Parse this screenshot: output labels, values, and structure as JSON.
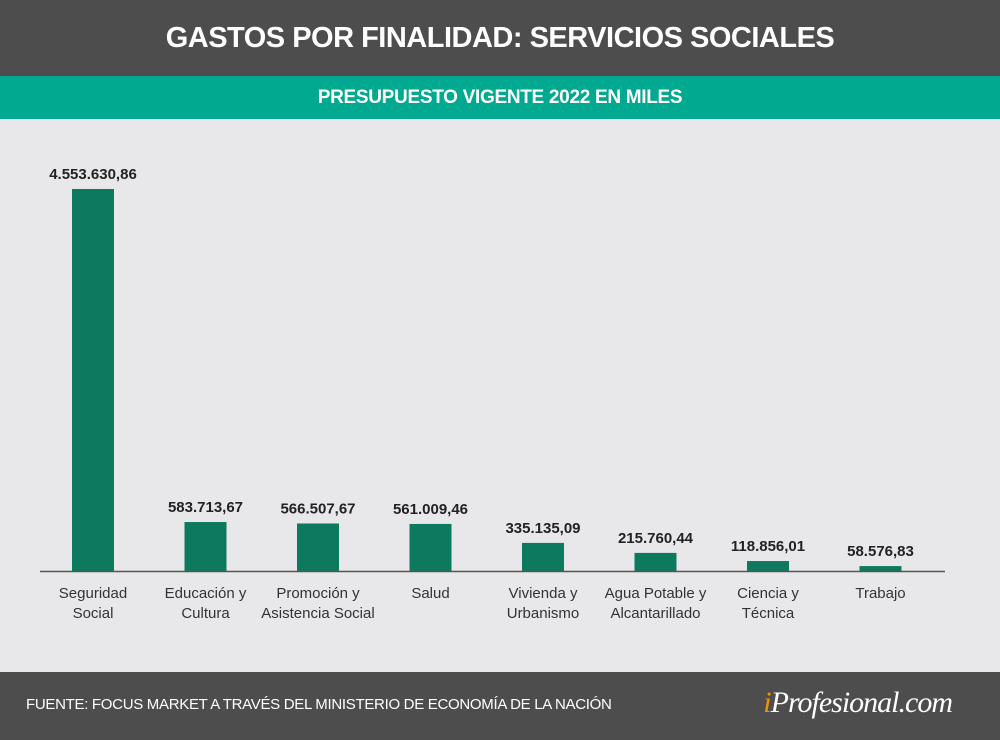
{
  "header": {
    "title": "GASTOS POR FINALIDAD: SERVICIOS SOCIALES",
    "subtitle": "PRESUPUESTO VIGENTE 2022 EN MILES"
  },
  "footer": {
    "source": "FUENTE: FOCUS MARKET A TRAVÉS DEL MINISTERIO DE ECONOMÍA DE LA NACIÓN",
    "logo_i": "i",
    "logo_rest": "Profesional.com"
  },
  "colors": {
    "bar": "#0d7a5f",
    "header": "#4d4d4d",
    "accent": "#00a98f"
  },
  "chart_data": {
    "type": "bar",
    "title": "GASTOS POR FINALIDAD: SERVICIOS SOCIALES",
    "subtitle": "PRESUPUESTO VIGENTE 2022 EN MILES",
    "categories": [
      [
        "Seguridad",
        "Social"
      ],
      [
        "Educación y",
        "Cultura"
      ],
      [
        "Promoción y",
        "Asistencia Social"
      ],
      [
        "Salud"
      ],
      [
        "Vivienda y",
        "Urbanismo"
      ],
      [
        "Agua Potable y",
        "Alcantarillado"
      ],
      [
        "Ciencia y",
        "Técnica"
      ],
      [
        "Trabajo"
      ]
    ],
    "values": [
      4553630.86,
      583713.67,
      566507.67,
      561009.46,
      335135.09,
      215760.44,
      118856.01,
      58576.83
    ],
    "labels": [
      "4.553.630,86",
      "583.713,67",
      "566.507,67",
      "561.009,46",
      "335.135,09",
      "215.760,44",
      "118.856,01",
      "58.576,83"
    ],
    "xlabel": "",
    "ylabel": "",
    "ylim": [
      0,
      4553630.86
    ],
    "grid": false
  }
}
